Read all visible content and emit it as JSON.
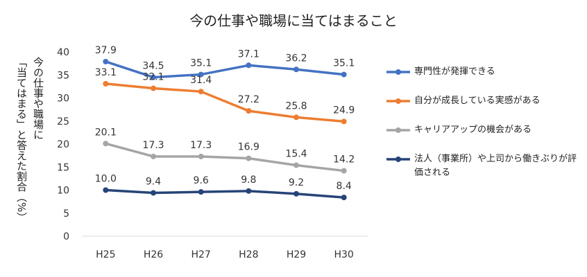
{
  "chart_data": {
    "type": "line",
    "title": "今の仕事や職場に当てはまること",
    "ylabel_lines": [
      "今の仕事や職場に",
      "「当てはまる」と答えた割合（%）"
    ],
    "categories": [
      "H25",
      "H26",
      "H27",
      "H28",
      "H29",
      "H30"
    ],
    "ylim": [
      0,
      40
    ],
    "yticks": [
      0,
      5,
      10,
      15,
      20,
      25,
      30,
      35,
      40
    ],
    "yticks_labels": [
      "0",
      "5",
      "10",
      "15",
      "20",
      "25",
      "30",
      "35",
      "40"
    ],
    "grid": false,
    "legend_position": "right",
    "series": [
      {
        "name": "専門性が発揮できる",
        "color": "#4472C4",
        "values": [
          37.9,
          34.5,
          35.1,
          37.1,
          36.2,
          35.1
        ],
        "labels": [
          "37.9",
          "34.5",
          "35.1",
          "37.1",
          "36.2",
          "35.1"
        ]
      },
      {
        "name": "自分が成長している実感がある",
        "color": "#ED7D31",
        "values": [
          33.1,
          32.1,
          31.4,
          27.2,
          25.8,
          24.9
        ],
        "labels": [
          "33.1",
          "32.1",
          "31.4",
          "27.2",
          "25.8",
          "24.9"
        ]
      },
      {
        "name": "キャリアアップの機会がある",
        "color": "#A5A5A5",
        "values": [
          20.1,
          17.3,
          17.3,
          16.9,
          15.4,
          14.2
        ],
        "labels": [
          "20.1",
          "17.3",
          "17.3",
          "16.9",
          "15.4",
          "14.2"
        ]
      },
      {
        "name": "法人（事業所）や上司から働きぶりが評価される",
        "color": "#264478",
        "values": [
          10.0,
          9.4,
          9.6,
          9.8,
          9.2,
          8.4
        ],
        "labels": [
          "10.0",
          "9.4",
          "9.6",
          "9.8",
          "9.2",
          "8.4"
        ]
      }
    ]
  }
}
